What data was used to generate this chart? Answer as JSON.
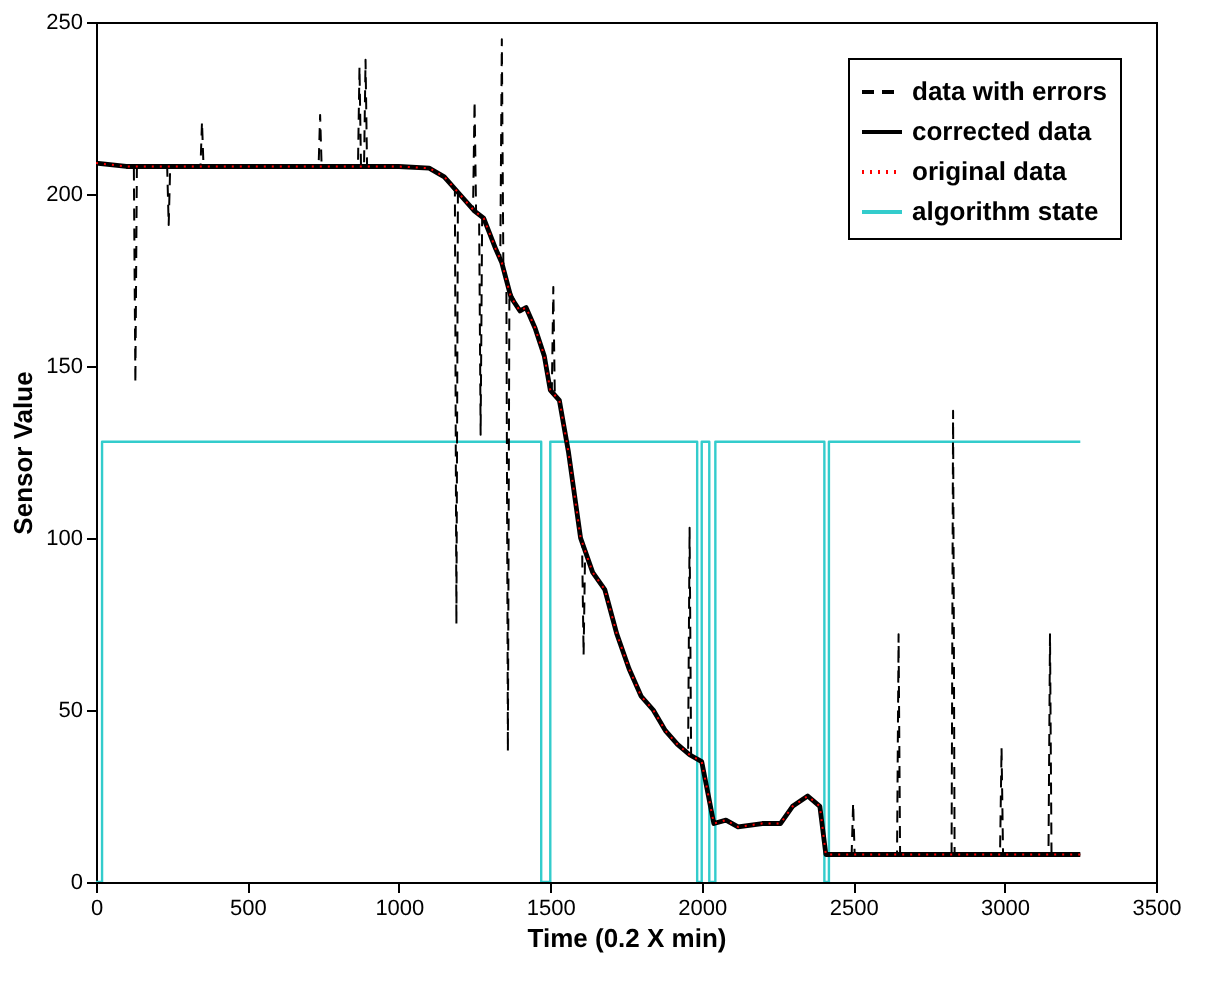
{
  "chart_data": {
    "type": "line",
    "xlabel": "Time (0.2 X min)",
    "ylabel": "Sensor Value",
    "xlim": [
      0,
      3500
    ],
    "ylim": [
      0,
      250
    ],
    "xticks": [
      0,
      500,
      1000,
      1500,
      2000,
      2500,
      3000,
      3500
    ],
    "yticks": [
      0,
      50,
      100,
      150,
      200,
      250
    ],
    "grid": false,
    "legend": "top right",
    "series": [
      {
        "name": "data with errors",
        "color": "#000000",
        "line_style": "dashed",
        "x": [
          0,
          100,
          125,
          130,
          135,
          235,
          240,
          245,
          345,
          350,
          355,
          735,
          740,
          745,
          865,
          870,
          875,
          885,
          890,
          895,
          1100,
          1150,
          1185,
          1190,
          1195,
          1245,
          1250,
          1255,
          1265,
          1270,
          1275,
          1320,
          1335,
          1340,
          1345,
          1355,
          1360,
          1365,
          1400,
          1420,
          1450,
          1480,
          1500,
          1505,
          1510,
          1515,
          1530,
          1560,
          1600,
          1605,
          1610,
          1615,
          1640,
          1680,
          1720,
          1760,
          1800,
          1840,
          1880,
          1920,
          1955,
          1960,
          1965,
          2000,
          2040,
          2080,
          2120,
          2200,
          2260,
          2300,
          2350,
          2390,
          2410,
          2495,
          2500,
          2505,
          2645,
          2650,
          2655,
          2825,
          2830,
          2835,
          2985,
          2990,
          2995,
          3145,
          3150,
          3155,
          3250
        ],
        "values": [
          209,
          208,
          208,
          145,
          208,
          208,
          191,
          208,
          208,
          221,
          208,
          208,
          223,
          208,
          208,
          237,
          208,
          208,
          239,
          208,
          207.5,
          205,
          201,
          75,
          200,
          196,
          227,
          195,
          194,
          130,
          193,
          184,
          182,
          245,
          180,
          175,
          38,
          172,
          166,
          167,
          161,
          153,
          143,
          142,
          173,
          141,
          140,
          125,
          100,
          98,
          66,
          96,
          90,
          85,
          72,
          62,
          54,
          50,
          44,
          40,
          37,
          103,
          37,
          35,
          17,
          18,
          16,
          17,
          17,
          22,
          25,
          22,
          8,
          8,
          23,
          8,
          8,
          72,
          8,
          8,
          137,
          8,
          8,
          39,
          8,
          8,
          72,
          8,
          8
        ]
      },
      {
        "name": "corrected data",
        "color": "#000000",
        "line_style": "solid",
        "x": [
          0,
          100,
          500,
          1000,
          1100,
          1150,
          1200,
          1250,
          1280,
          1320,
          1340,
          1370,
          1400,
          1420,
          1450,
          1480,
          1500,
          1530,
          1560,
          1600,
          1640,
          1680,
          1720,
          1760,
          1800,
          1840,
          1880,
          1920,
          1960,
          2000,
          2040,
          2080,
          2120,
          2200,
          2260,
          2300,
          2350,
          2390,
          2410,
          2500,
          3000,
          3250
        ],
        "values": [
          209,
          208,
          208,
          208,
          207.5,
          205,
          200,
          195,
          193,
          184,
          180,
          170,
          166,
          167,
          161,
          153,
          143,
          140,
          125,
          100,
          90,
          85,
          72,
          62,
          54,
          50,
          44,
          40,
          37,
          35,
          17,
          18,
          16,
          17,
          17,
          22,
          25,
          22,
          8,
          8,
          8,
          8
        ]
      },
      {
        "name": "original data",
        "color": "#ff0000",
        "line_style": "dotted",
        "x": [
          0,
          100,
          500,
          1000,
          1100,
          1150,
          1200,
          1250,
          1280,
          1320,
          1340,
          1370,
          1400,
          1420,
          1450,
          1480,
          1500,
          1530,
          1560,
          1600,
          1640,
          1680,
          1720,
          1760,
          1800,
          1840,
          1880,
          1920,
          1960,
          2000,
          2040,
          2080,
          2120,
          2200,
          2260,
          2300,
          2350,
          2390,
          2410,
          2500,
          3000,
          3250
        ],
        "values": [
          209,
          208,
          208,
          208,
          207.5,
          205,
          200,
          195,
          193,
          184,
          180,
          170,
          166,
          167,
          161,
          153,
          143,
          140,
          125,
          100,
          90,
          85,
          72,
          62,
          54,
          50,
          44,
          40,
          37,
          35,
          17,
          18,
          16,
          17,
          17,
          22,
          25,
          22,
          8,
          8,
          8,
          8
        ]
      },
      {
        "name": "algorithm state",
        "color": "#33cccc",
        "type": "step",
        "line_style": "solid",
        "x": [
          0,
          20,
          1470,
          1500,
          1985,
          2000,
          2025,
          2045,
          2405,
          2420,
          3250
        ],
        "values": [
          0,
          128,
          0,
          128,
          0,
          128,
          0,
          128,
          0,
          128,
          128
        ]
      }
    ]
  }
}
